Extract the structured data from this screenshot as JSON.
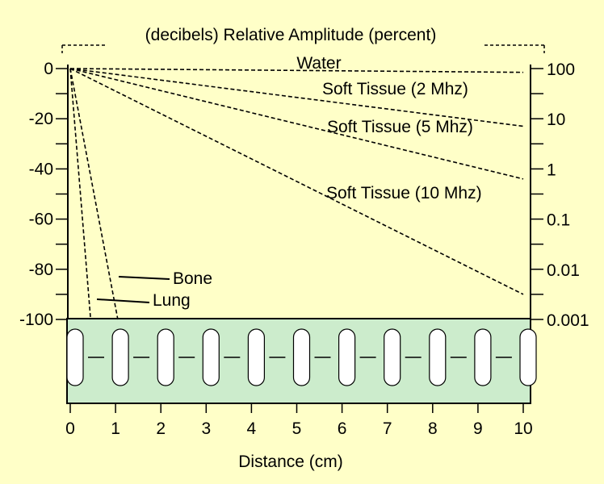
{
  "chart_data": {
    "type": "line",
    "title": "(decibels) Relative Amplitude (percent)",
    "xlabel": "Distance (cm)",
    "ylabel_left": "decibels",
    "ylabel_right": "percent",
    "xlim": [
      0,
      10
    ],
    "ylim": [
      -100,
      0
    ],
    "x_ticks": [
      "0",
      "1",
      "2",
      "3",
      "4",
      "5",
      "6",
      "7",
      "8",
      "9",
      "10"
    ],
    "y_ticks_left": [
      "0",
      "-20",
      "-40",
      "-60",
      "-80",
      "-100"
    ],
    "y_ticks_right": [
      "100",
      "10",
      "1",
      "0.1",
      "0.01",
      "0.001"
    ],
    "series": [
      {
        "name": "Water",
        "x": [
          0,
          10
        ],
        "y": [
          0,
          -1.5
        ]
      },
      {
        "name": "Soft Tissue (2 Mhz)",
        "x": [
          0,
          10
        ],
        "y": [
          0,
          -23
        ]
      },
      {
        "name": "Soft Tissue (5 Mhz)",
        "x": [
          0,
          10
        ],
        "y": [
          0,
          -44
        ]
      },
      {
        "name": "Soft Tissue (10 Mhz)",
        "x": [
          0,
          10
        ],
        "y": [
          0,
          -90
        ]
      },
      {
        "name": "Bone",
        "x": [
          0,
          1.05
        ],
        "y": [
          0,
          -100
        ]
      },
      {
        "name": "Lung",
        "x": [
          0,
          0.45
        ],
        "y": [
          0,
          -100
        ]
      }
    ],
    "colors": {
      "background": "#ffffc8",
      "transducer_fill": "#cceccc"
    }
  }
}
